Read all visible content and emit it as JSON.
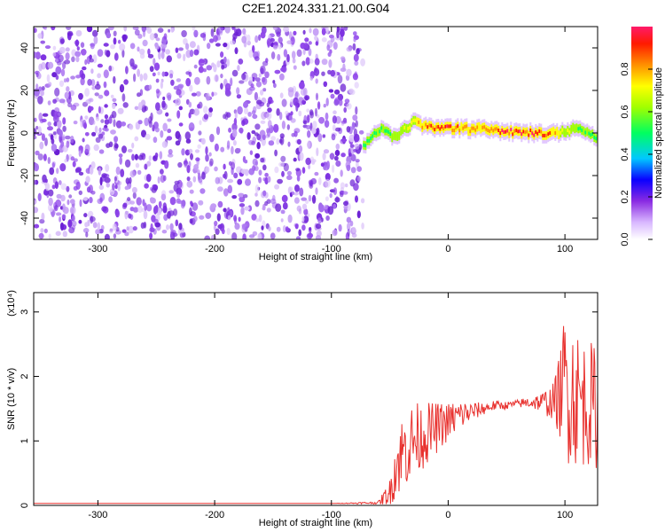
{
  "title": "C2E1.2024.331.21.00.G04",
  "colors": {
    "spectrogram_dots": "#7b2fe0",
    "snr_line": "#e8312e",
    "axis": "#000000"
  },
  "chart_data": [
    {
      "type": "heatmap",
      "xlabel": "Height of straight line (km)",
      "ylabel": "Frequency (Hz)",
      "xlim": [
        -355,
        128
      ],
      "ylim": [
        -50,
        50
      ],
      "xticks": [
        -300,
        -200,
        -100,
        0,
        100
      ],
      "yticks": [
        -40,
        -20,
        0,
        20,
        40
      ],
      "noise_region": {
        "x": [
          -355,
          -73
        ],
        "level": 0.2
      },
      "signal_band": [
        {
          "x": -73,
          "y": -6,
          "amp": 0.45
        },
        {
          "x": -60,
          "y": 2,
          "amp": 0.5
        },
        {
          "x": -45,
          "y": -2,
          "amp": 0.55
        },
        {
          "x": -30,
          "y": 5,
          "amp": 0.7
        },
        {
          "x": -20,
          "y": 3,
          "amp": 0.85
        },
        {
          "x": 0,
          "y": 2,
          "amp": 0.9
        },
        {
          "x": 20,
          "y": 2,
          "amp": 0.75
        },
        {
          "x": 45,
          "y": 1,
          "amp": 0.9
        },
        {
          "x": 70,
          "y": 0,
          "amp": 0.95
        },
        {
          "x": 90,
          "y": 0,
          "amp": 0.8
        },
        {
          "x": 110,
          "y": 2,
          "amp": 0.55
        },
        {
          "x": 128,
          "y": -2,
          "amp": 0.45
        }
      ],
      "colorbar": {
        "label": "Normalized spectral amplitude",
        "range": [
          0,
          1
        ],
        "ticks": [
          "0.0",
          "0.2",
          "0.4",
          "0.6",
          "0.8"
        ]
      }
    },
    {
      "type": "line",
      "xlabel": "Height of straight line (km)",
      "ylabel": "SNR (10 * v/v)",
      "y_multiplier": "(x10⁴)",
      "xlim": [
        -355,
        128
      ],
      "ylim": [
        0,
        3.3
      ],
      "xticks": [
        -300,
        -200,
        -100,
        0,
        100
      ],
      "yticks": [
        0,
        1,
        2,
        3
      ],
      "series": [
        {
          "x": [
            -355,
            -300,
            -200,
            -100,
            -60,
            -50,
            -45,
            -40,
            -30,
            -20,
            -10,
            0,
            10,
            20,
            30,
            40,
            50,
            60,
            70,
            80,
            90,
            95,
            100,
            105,
            110,
            115,
            120,
            125,
            128
          ],
          "y": [
            0.03,
            0.03,
            0.03,
            0.03,
            0.04,
            0.2,
            0.6,
            0.8,
            1.0,
            1.1,
            1.2,
            1.3,
            1.4,
            1.45,
            1.5,
            1.55,
            1.55,
            1.58,
            1.6,
            1.6,
            1.6,
            1.7,
            1.9,
            1.8,
            1.7,
            1.6,
            1.6,
            1.5,
            1.4
          ],
          "spread": [
            0,
            0,
            0,
            0,
            0.02,
            0.2,
            0.5,
            0.6,
            0.6,
            0.5,
            0.4,
            0.3,
            0.25,
            0.15,
            0.1,
            0.08,
            0.06,
            0.06,
            0.1,
            0.15,
            0.3,
            0.6,
            1.2,
            1.2,
            1.1,
            1.0,
            1.0,
            1.0,
            0.8
          ]
        }
      ]
    }
  ]
}
